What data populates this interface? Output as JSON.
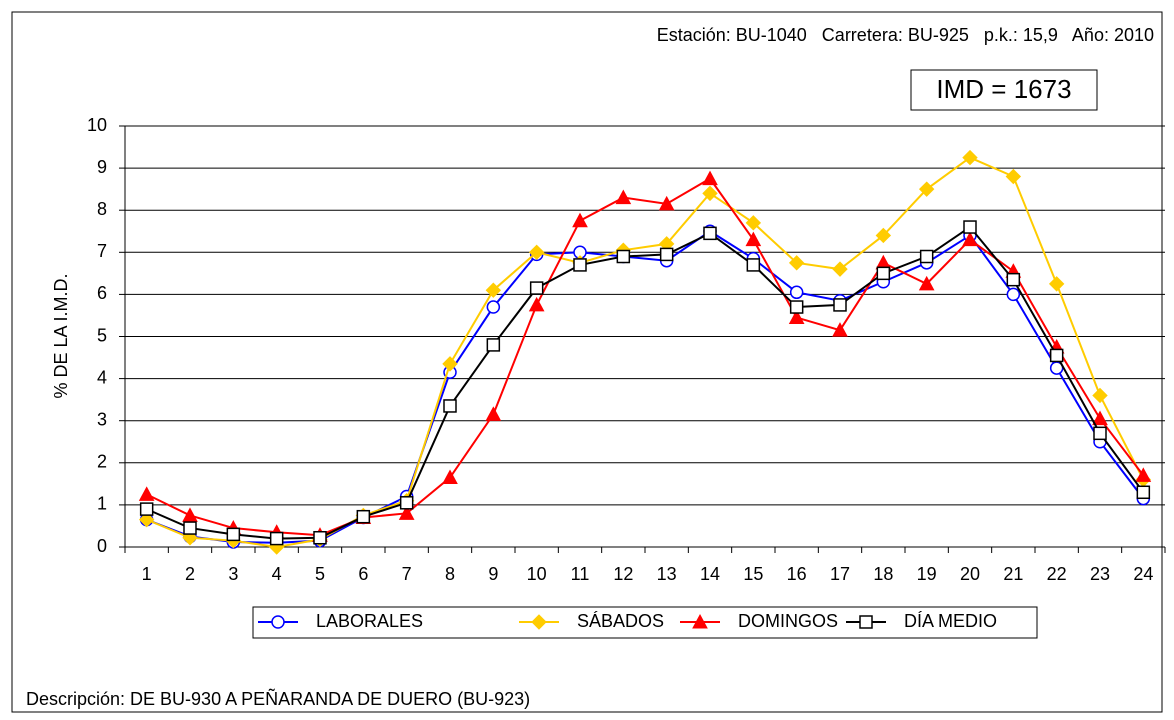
{
  "chart_data": {
    "type": "line",
    "header": "Estación: BU-1040   Carretera: BU-925   p.k.: 15,9   Año: 2010",
    "annotation": "IMD = 1673",
    "y_label": "% DE LA I.M.D.",
    "footer": "Descripción: DE BU-930 A PEÑARANDA DE DUERO (BU-923)",
    "categories": [
      "1",
      "2",
      "3",
      "4",
      "5",
      "6",
      "7",
      "8",
      "9",
      "10",
      "11",
      "12",
      "13",
      "14",
      "15",
      "16",
      "17",
      "18",
      "19",
      "20",
      "21",
      "22",
      "23",
      "24"
    ],
    "series": [
      {
        "name": "LABORALES",
        "color": "#0000ff",
        "marker": "circle",
        "values": [
          0.65,
          0.25,
          0.12,
          0.1,
          0.15,
          0.7,
          1.2,
          4.15,
          5.7,
          6.95,
          7.0,
          6.9,
          6.8,
          7.5,
          6.85,
          6.05,
          5.85,
          6.3,
          6.75,
          7.4,
          6.0,
          4.25,
          2.5,
          1.15
        ]
      },
      {
        "name": "SÁBADOS",
        "color": "#ffcc00",
        "marker": "diamond",
        "values": [
          0.65,
          0.22,
          0.15,
          0.0,
          0.18,
          0.75,
          1.1,
          4.35,
          6.1,
          7.0,
          6.75,
          7.05,
          7.2,
          8.4,
          7.7,
          6.75,
          6.6,
          7.4,
          8.5,
          9.25,
          8.8,
          6.25,
          3.6,
          1.6
        ]
      },
      {
        "name": "DOMINGOS",
        "color": "#ff0000",
        "marker": "triangle",
        "values": [
          1.25,
          0.75,
          0.45,
          0.35,
          0.28,
          0.7,
          0.8,
          1.65,
          3.15,
          5.75,
          7.75,
          8.3,
          8.15,
          8.75,
          7.3,
          5.45,
          5.15,
          6.75,
          6.25,
          7.3,
          6.55,
          4.75,
          3.05,
          1.7
        ]
      },
      {
        "name": "DÍA MEDIO",
        "color": "#000000",
        "marker": "square",
        "values": [
          0.9,
          0.45,
          0.3,
          0.2,
          0.22,
          0.72,
          1.05,
          3.35,
          4.8,
          6.15,
          6.7,
          6.9,
          6.95,
          7.45,
          6.7,
          5.7,
          5.75,
          6.5,
          6.9,
          7.6,
          6.35,
          4.55,
          2.7,
          1.3
        ]
      }
    ],
    "ylim": [
      0,
      10
    ],
    "yticks": [
      0,
      1,
      2,
      3,
      4,
      5,
      6,
      7,
      8,
      9,
      10
    ],
    "grid": true,
    "legend": "bottom"
  }
}
